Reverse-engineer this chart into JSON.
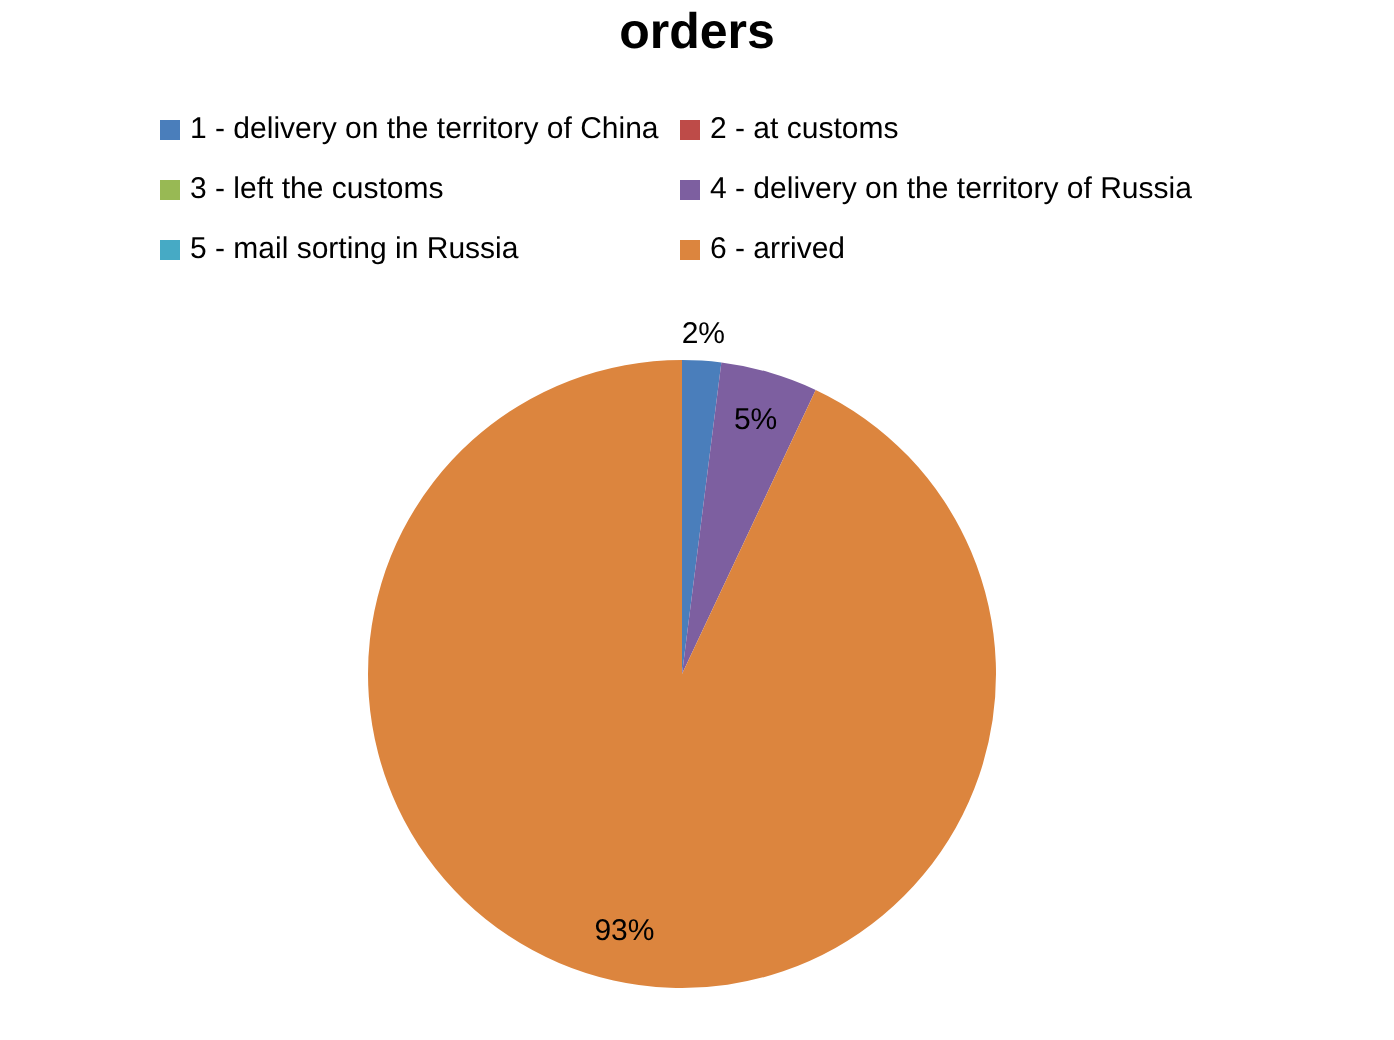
{
  "chart_data": {
    "type": "pie",
    "title": "orders",
    "categories": [
      "1 - delivery on the territory of China",
      "2 - at customs",
      "3 - left the customs",
      "4 - delivery on the territory of Russia",
      "5 - mail sorting in Russia",
      "6 - arrived"
    ],
    "values": [
      2,
      0,
      0,
      5,
      0,
      93
    ],
    "value_labels": [
      "2%",
      null,
      null,
      "5%",
      null,
      "93%"
    ],
    "colors": [
      "#4a7ebb",
      "#be4b48",
      "#98b954",
      "#7d5fa0",
      "#46aac5",
      "#dc853e"
    ],
    "legend": "top"
  }
}
